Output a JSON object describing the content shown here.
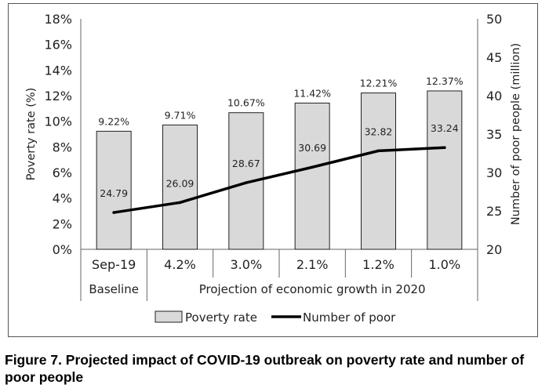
{
  "chart_data": {
    "type": "bar",
    "categories": [
      "Sep-19",
      "4.2%",
      "3.0%",
      "2.1%",
      "1.2%",
      "1.0%"
    ],
    "group_labels": [
      "Baseline",
      "Projection of economic growth in 2020"
    ],
    "series": [
      {
        "name": "Poverty rate",
        "type": "bar",
        "axis": "left",
        "values": [
          9.22,
          9.71,
          10.67,
          11.42,
          12.21,
          12.37
        ],
        "labels": [
          "9.22%",
          "9.71%",
          "10.67%",
          "11.42%",
          "12.21%",
          "12.37%"
        ],
        "color": "#d9d9d9"
      },
      {
        "name": "Number of poor",
        "type": "line",
        "axis": "right",
        "values": [
          24.79,
          26.09,
          28.67,
          30.69,
          32.82,
          33.24
        ],
        "labels": [
          "24.79",
          "26.09",
          "28.67",
          "30.69",
          "32.82",
          "33.24"
        ],
        "color": "#000000"
      }
    ],
    "ylabel": "Poverty rate (%)",
    "y2label": "Number of poor people (million)",
    "ylim": [
      0,
      18
    ],
    "y2lim": [
      20,
      50
    ],
    "yticks": [
      "0%",
      "2%",
      "4%",
      "6%",
      "8%",
      "10%",
      "12%",
      "14%",
      "16%",
      "18%"
    ],
    "y2ticks": [
      "20",
      "25",
      "30",
      "35",
      "40",
      "45",
      "50"
    ],
    "grid": false,
    "legend_position": "bottom"
  },
  "caption": "Figure 7. Projected impact of COVID-19 outbreak on poverty rate and number of poor people"
}
